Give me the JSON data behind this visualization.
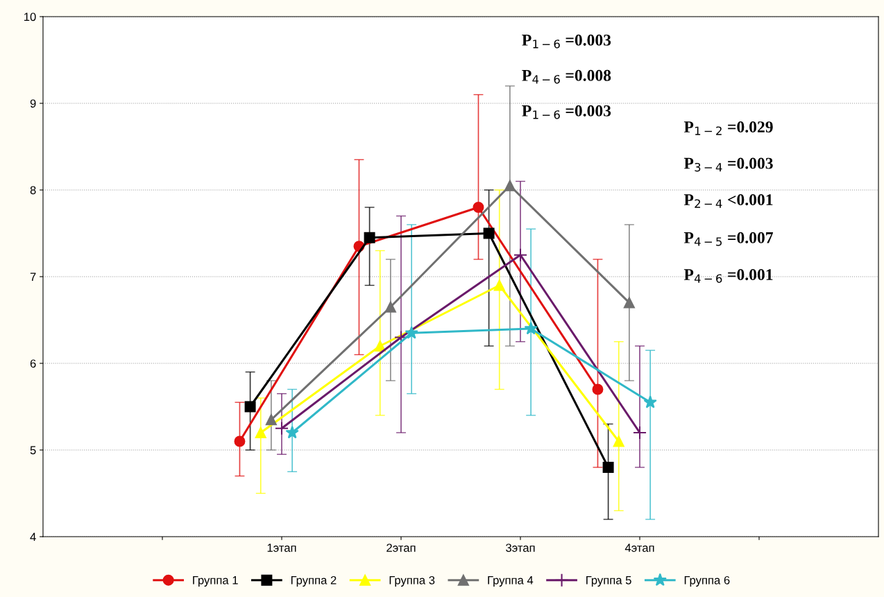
{
  "chart_data": {
    "type": "line",
    "categories": [
      null,
      "1этап",
      "2этап",
      "3этап",
      "4этап",
      null
    ],
    "ylim": [
      4,
      10
    ],
    "yticks": [
      4,
      5,
      6,
      7,
      8,
      9,
      10
    ],
    "grid": "y",
    "legend": "bottom",
    "line_style": "solid",
    "series": [
      {
        "name": "Группа 1",
        "color": "#e01010",
        "marker": "circle",
        "values": [
          null,
          5.1,
          7.35,
          7.8,
          5.7,
          null
        ],
        "errors": [
          null,
          [
            4.7,
            5.55
          ],
          [
            6.1,
            8.35
          ],
          [
            7.2,
            9.1
          ],
          [
            4.8,
            7.2
          ],
          null
        ]
      },
      {
        "name": "Группа 2",
        "color": "#000000",
        "marker": "square",
        "values": [
          null,
          5.5,
          7.45,
          7.5,
          4.8,
          null
        ],
        "errors": [
          null,
          [
            5.0,
            5.9
          ],
          [
            6.9,
            7.8
          ],
          [
            6.2,
            8.0
          ],
          [
            4.2,
            5.3
          ],
          null
        ]
      },
      {
        "name": "Группа 3",
        "color": "#ffff00",
        "marker": "triangle",
        "values": [
          null,
          5.2,
          6.2,
          6.9,
          5.1,
          null
        ],
        "errors": [
          null,
          [
            4.5,
            5.6
          ],
          [
            5.4,
            7.3
          ],
          [
            5.7,
            8.0
          ],
          [
            4.3,
            6.25
          ],
          null
        ]
      },
      {
        "name": "Группа 4",
        "color": "#707070",
        "marker": "triangle",
        "values": [
          null,
          5.35,
          6.65,
          8.05,
          6.7,
          null
        ],
        "errors": [
          null,
          [
            5.0,
            5.8
          ],
          [
            5.8,
            7.2
          ],
          [
            6.2,
            9.2
          ],
          [
            5.8,
            7.6
          ],
          null
        ]
      },
      {
        "name": "Группа 5",
        "color": "#6a1a6a",
        "marker": "cross",
        "values": [
          null,
          5.25,
          6.3,
          7.25,
          5.2,
          null
        ],
        "errors": [
          null,
          [
            4.95,
            5.65
          ],
          [
            5.2,
            7.7
          ],
          [
            6.25,
            8.1
          ],
          [
            4.8,
            6.2
          ],
          null
        ]
      },
      {
        "name": "Группа 6",
        "color": "#30b8c8",
        "marker": "star",
        "values": [
          null,
          5.2,
          6.35,
          6.4,
          5.55,
          null
        ],
        "errors": [
          null,
          [
            4.75,
            5.7
          ],
          [
            5.65,
            7.6
          ],
          [
            5.4,
            7.55
          ],
          [
            4.2,
            6.15
          ],
          null
        ]
      }
    ],
    "annotations": [
      "P$_{1−6}$ =0.003",
      "P$_{4−6}$ =0.008",
      "P$_{1−6}$ =0.003",
      "P$_{1−2}$ =0.029",
      "P$_{3−4}$ =0.003",
      "P$_{2−4}$ <0.001",
      "P$_{4−5}$ =0.007",
      "P$_{4−6}$ =0.001"
    ]
  }
}
